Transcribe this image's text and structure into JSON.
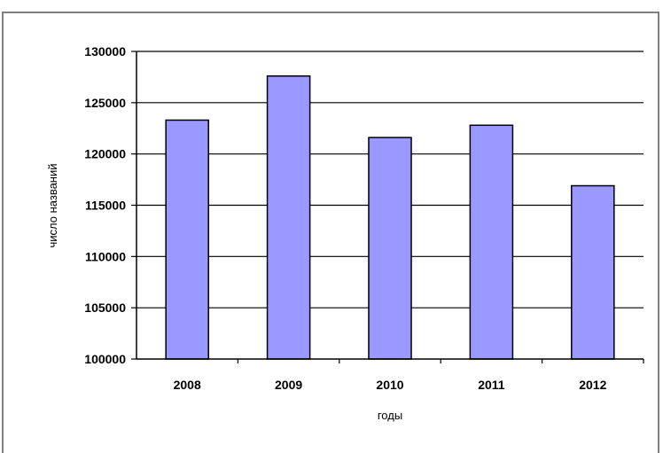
{
  "chart_data": {
    "type": "bar",
    "title": "",
    "xlabel": "годы",
    "ylabel": "число названий",
    "categories": [
      "2008",
      "2009",
      "2010",
      "2011",
      "2012"
    ],
    "values": [
      123300,
      127600,
      121600,
      122800,
      116900
    ],
    "ylim": [
      100000,
      130000
    ],
    "yticks": [
      "100000",
      "105000",
      "110000",
      "115000",
      "120000",
      "125000",
      "130000"
    ],
    "grid": true,
    "legend": "none",
    "bar_color": "#9999ff",
    "bar_edge_color": "#000000"
  }
}
